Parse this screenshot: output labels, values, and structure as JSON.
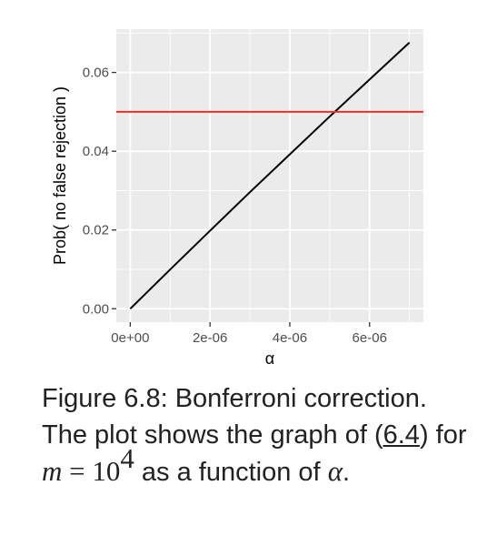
{
  "chart_data": {
    "type": "line",
    "xlabel": "α",
    "ylabel": "Prob( no false rejection )",
    "xlim": [
      -3.5e-07,
      7.35e-06
    ],
    "ylim": [
      -0.0034,
      0.071
    ],
    "x_ticks": [
      0,
      2e-06,
      4e-06,
      6e-06
    ],
    "x_tick_labels": [
      "0e+00",
      "2e-06",
      "4e-06",
      "6e-06"
    ],
    "y_ticks": [
      0,
      0.02,
      0.04,
      0.06
    ],
    "y_tick_labels": [
      "0.00",
      "0.02",
      "0.04",
      "0.06"
    ],
    "grid": true,
    "series": [
      {
        "type": "line",
        "color": "#000000",
        "x": [
          0,
          1e-06,
          2e-06,
          3e-06,
          4e-06,
          5e-06,
          6e-06,
          7e-06
        ],
        "y": [
          0,
          0.00995,
          0.0198,
          0.0296,
          0.0392,
          0.0488,
          0.0582,
          0.0676
        ]
      },
      {
        "type": "hline",
        "color": "#e8322b",
        "y": 0.05
      }
    ],
    "panel_color": "#ebebeb",
    "grid_color": "#ffffff"
  },
  "caption": {
    "figure_label": "Figure 6.8:",
    "text_1": " Bonferroni correction. The plot shows the graph of (",
    "ref": "6.4",
    "text_2": ") for ",
    "math_var": "m",
    "math_eq": " = 10",
    "math_exp": "4",
    "text_3": " as a function of ",
    "math_alpha": "α",
    "text_4": "."
  }
}
